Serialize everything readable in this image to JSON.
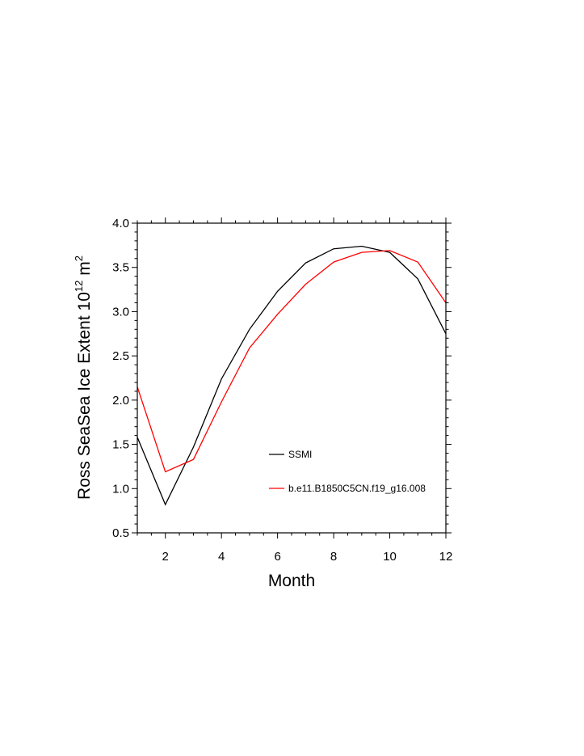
{
  "chart_data": {
    "type": "line",
    "xlabel": "Month",
    "ylabel": "Ross SeaSea Ice Extent 10",
    "ylabel_exp": "12",
    "ylabel_unit": "m",
    "ylabel_unit_exp": "2",
    "xlim": [
      1,
      12
    ],
    "ylim": [
      0.5,
      4.0
    ],
    "x_ticks": [
      2,
      4,
      6,
      8,
      10,
      12
    ],
    "y_ticks": [
      "0.5",
      "1.0",
      "1.5",
      "2.0",
      "2.5",
      "3.0",
      "3.5",
      "4.0"
    ],
    "grid": false,
    "legend_position": "lower-center",
    "x": [
      1,
      2,
      3,
      4,
      5,
      6,
      7,
      8,
      9,
      10,
      11,
      12
    ],
    "series": [
      {
        "name": "SSMI",
        "color": "#000000",
        "values": [
          1.58,
          0.82,
          1.47,
          2.24,
          2.8,
          3.23,
          3.55,
          3.71,
          3.74,
          3.67,
          3.37,
          2.75
        ]
      },
      {
        "name": "b.e11.B1850C5CN.f19_g16.008",
        "color": "#ff0000",
        "values": [
          2.15,
          1.19,
          1.33,
          1.98,
          2.59,
          2.97,
          3.31,
          3.56,
          3.67,
          3.69,
          3.56,
          3.1
        ]
      }
    ]
  }
}
